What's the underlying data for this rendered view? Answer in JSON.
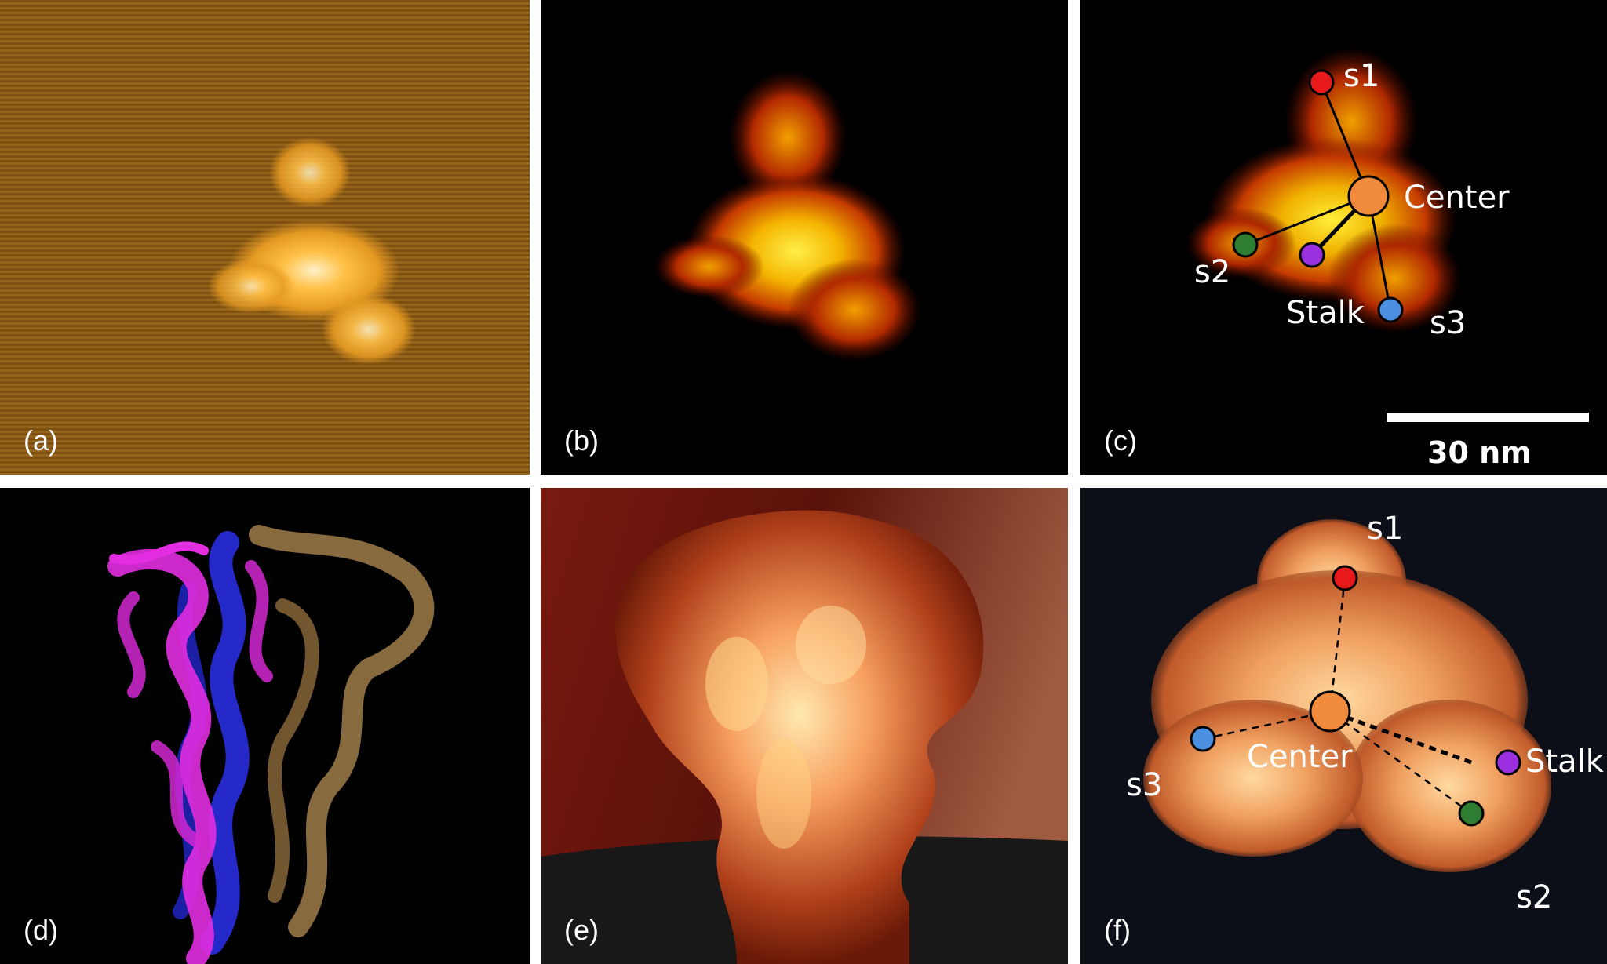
{
  "panels": {
    "a": {
      "label": "(a)"
    },
    "b": {
      "label": "(b)"
    },
    "c": {
      "label": "(c)",
      "site_labels": {
        "s1": "s1",
        "s2": "s2",
        "s3": "s3",
        "center": "Center",
        "stalk": "Stalk"
      },
      "scale_bar": "30 nm"
    },
    "d": {
      "label": "(d)"
    },
    "e": {
      "label": "(e)"
    },
    "f": {
      "label": "(f)",
      "site_labels": {
        "s1": "s1",
        "s2": "s2",
        "s3": "s3",
        "center": "Center",
        "stalk": "Stalk"
      }
    }
  },
  "colors": {
    "s1": "#e8191b",
    "s2": "#2e7d32",
    "s3": "#4a8fe0",
    "center": "#f08a3c",
    "stalk": "#9b30e0"
  }
}
